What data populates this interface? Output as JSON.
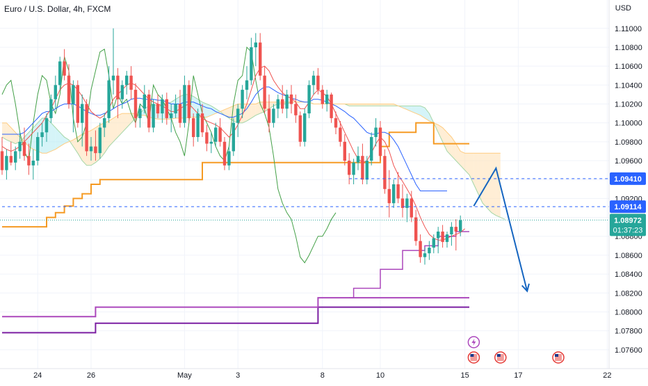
{
  "header": {
    "symbol_title": "Euro / U.S. Dollar, 4h, FXCM",
    "unit": "USD"
  },
  "colors": {
    "up": "#26a69a",
    "down": "#ef5350",
    "kijun_d": "#f59a23",
    "tenkan": "#2962ff",
    "chikou": "#43a047",
    "weekly": "#ab47bc",
    "monthly": "#7b1fa2",
    "cloud_bull": "#b2ebf2",
    "cloud_bear": "#ffe0b2",
    "arrow": "#1565c0",
    "level_line": "#2962ff",
    "price_label": "#26a69a",
    "level_label": "#2962ff"
  },
  "chart_data": {
    "type": "candlestick",
    "title": "Euro / U.S. Dollar, 4h, FXCM",
    "ylabel": "USD",
    "ylim": [
      1.074,
      1.113
    ],
    "y_ticks": [
      "1.11000",
      "1.10800",
      "1.10600",
      "1.10400",
      "1.10200",
      "1.10000",
      "1.09800",
      "1.09600",
      "1.09400",
      "1.09200",
      "1.09000",
      "1.08800",
      "1.08600",
      "1.08400",
      "1.08200",
      "1.08000",
      "1.07800",
      "1.07600"
    ],
    "x_ticks": [
      {
        "label": "24",
        "i": 8
      },
      {
        "label": "26",
        "i": 20
      },
      {
        "label": "May",
        "i": 41
      },
      {
        "label": "3",
        "i": 53
      },
      {
        "label": "8",
        "i": 72
      },
      {
        "label": "10",
        "i": 85
      },
      {
        "label": "15",
        "i": 104
      },
      {
        "label": "17",
        "i": 116
      },
      {
        "label": "22",
        "i": 136
      }
    ],
    "candles": [
      [
        1.097,
        1.0985,
        1.0945,
        1.095
      ],
      [
        1.095,
        1.0972,
        1.094,
        1.0965
      ],
      [
        1.0965,
        1.098,
        1.0955,
        1.0958
      ],
      [
        1.0958,
        1.0975,
        1.095,
        1.097
      ],
      [
        1.097,
        1.099,
        1.0962,
        1.098
      ],
      [
        1.098,
        1.0995,
        1.096,
        1.0965
      ],
      [
        1.0965,
        1.0978,
        1.0945,
        1.0955
      ],
      [
        1.0955,
        1.0972,
        1.094,
        1.096
      ],
      [
        1.096,
        1.099,
        1.0955,
        1.0985
      ],
      [
        1.0985,
        1.1,
        1.0975,
        1.099
      ],
      [
        1.099,
        1.101,
        1.098,
        1.1005
      ],
      [
        1.1005,
        1.103,
        1.1,
        1.1025
      ],
      [
        1.1025,
        1.105,
        1.1015,
        1.104
      ],
      [
        1.104,
        1.107,
        1.1035,
        1.1065
      ],
      [
        1.1065,
        1.1078,
        1.1045,
        1.105
      ],
      [
        1.105,
        1.1062,
        1.1015,
        1.102
      ],
      [
        1.102,
        1.1045,
        1.099,
        1.104
      ],
      [
        1.104,
        1.1045,
        1.0995,
        1.1
      ],
      [
        1.1,
        1.103,
        1.0975,
        1.102
      ],
      [
        1.102,
        1.1025,
        1.0965,
        1.097
      ],
      [
        1.097,
        1.0985,
        1.096,
        1.0975
      ],
      [
        1.0975,
        1.0992,
        1.096,
        1.0968
      ],
      [
        1.0968,
        1.1,
        1.0962,
        1.0995
      ],
      [
        1.0995,
        1.101,
        1.0985,
        1.1005
      ],
      [
        1.1005,
        1.106,
        1.1,
        1.1045
      ],
      [
        1.1045,
        1.11,
        1.103,
        1.105
      ],
      [
        1.105,
        1.1058,
        1.1005,
        1.1025
      ],
      [
        1.1025,
        1.1045,
        1.1015,
        1.104
      ],
      [
        1.104,
        1.1055,
        1.103,
        1.105
      ],
      [
        1.105,
        1.106,
        1.1025,
        1.1035
      ],
      [
        1.1035,
        1.1042,
        1.0995,
        1.1005
      ],
      [
        1.1005,
        1.102,
        1.0995,
        1.1015
      ],
      [
        1.1015,
        1.104,
        1.101,
        1.103
      ],
      [
        1.103,
        1.1035,
        1.099,
        1.0995
      ],
      [
        1.0995,
        1.1025,
        1.099,
        1.102
      ],
      [
        1.102,
        1.103,
        1.1005,
        1.101
      ],
      [
        1.101,
        1.103,
        1.1,
        1.1025
      ],
      [
        1.1025,
        1.1032,
        1.0998,
        1.1005
      ],
      [
        1.1005,
        1.102,
        1.099,
        1.101
      ],
      [
        1.101,
        1.103,
        1.1005,
        1.102
      ],
      [
        1.102,
        1.1035,
        1.0995,
        1.1
      ],
      [
        1.1,
        1.105,
        1.0995,
        1.104
      ],
      [
        1.104,
        1.1045,
        1.1,
        1.1005
      ],
      [
        1.1005,
        1.101,
        1.0975,
        1.0985
      ],
      [
        1.0985,
        1.1015,
        1.098,
        1.101
      ],
      [
        1.101,
        1.102,
        1.0985,
        1.099
      ],
      [
        1.099,
        1.0998,
        1.097,
        1.0978
      ],
      [
        1.0978,
        1.099,
        1.0968,
        1.098
      ],
      [
        1.098,
        1.1,
        1.0975,
        1.0995
      ],
      [
        1.0995,
        1.1005,
        1.0975,
        1.098
      ],
      [
        1.098,
        1.0985,
        1.095,
        1.0955
      ],
      [
        1.0955,
        1.0975,
        1.095,
        1.097
      ],
      [
        1.097,
        1.1005,
        1.0965,
        1.1
      ],
      [
        1.1,
        1.102,
        1.0985,
        1.1015
      ],
      [
        1.1015,
        1.104,
        1.1005,
        1.1035
      ],
      [
        1.1035,
        1.106,
        1.1025,
        1.1045
      ],
      [
        1.1045,
        1.109,
        1.104,
        1.108
      ],
      [
        1.108,
        1.1095,
        1.106,
        1.1085
      ],
      [
        1.1085,
        1.1095,
        1.1045,
        1.105
      ],
      [
        1.105,
        1.106,
        1.101,
        1.1015
      ],
      [
        1.1015,
        1.103,
        1.099,
        1.1
      ],
      [
        1.1,
        1.102,
        1.0995,
        1.1015
      ],
      [
        1.1015,
        1.103,
        1.1005,
        1.1025
      ],
      [
        1.1025,
        1.104,
        1.101,
        1.1015
      ],
      [
        1.1015,
        1.1035,
        1.1005,
        1.103
      ],
      [
        1.103,
        1.104,
        1.101,
        1.102
      ],
      [
        1.102,
        1.103,
        1.1,
        1.1008
      ],
      [
        1.1008,
        1.1012,
        1.0975,
        1.098
      ],
      [
        1.098,
        1.1015,
        1.0975,
        1.101
      ],
      [
        1.101,
        1.1045,
        1.1005,
        1.104
      ],
      [
        1.104,
        1.1055,
        1.103,
        1.105
      ],
      [
        1.105,
        1.1058,
        1.103,
        1.1035
      ],
      [
        1.1035,
        1.104,
        1.1015,
        1.102
      ],
      [
        1.102,
        1.1035,
        1.1012,
        1.103
      ],
      [
        1.103,
        1.1032,
        1.1,
        1.1005
      ],
      [
        1.1005,
        1.1012,
        1.0988,
        1.0995
      ],
      [
        1.0995,
        1.1002,
        1.0975,
        1.098
      ],
      [
        1.098,
        1.0988,
        1.0955,
        1.096
      ],
      [
        1.096,
        1.0968,
        1.0935,
        1.0945
      ],
      [
        1.0945,
        1.0962,
        1.0935,
        1.0958
      ],
      [
        1.0958,
        1.0975,
        1.095,
        1.0965
      ],
      [
        1.0965,
        1.0978,
        1.0935,
        1.094
      ],
      [
        1.094,
        1.0965,
        1.0935,
        1.096
      ],
      [
        1.096,
        1.099,
        1.0955,
        1.0985
      ],
      [
        1.0985,
        1.1005,
        1.0975,
        1.0995
      ],
      [
        1.0995,
        1.1002,
        1.096,
        1.0965
      ],
      [
        1.0965,
        1.0972,
        1.0925,
        1.093
      ],
      [
        1.093,
        1.095,
        1.09,
        1.0915
      ],
      [
        1.0915,
        1.094,
        1.091,
        1.0935
      ],
      [
        1.0935,
        1.0948,
        1.0915,
        1.092
      ],
      [
        1.092,
        1.0935,
        1.09,
        1.091
      ],
      [
        1.091,
        1.0925,
        1.0895,
        1.092
      ],
      [
        1.092,
        1.0928,
        1.0895,
        1.09
      ],
      [
        1.09,
        1.0908,
        1.087,
        1.0875
      ],
      [
        1.0875,
        1.0882,
        1.0852,
        1.0858
      ],
      [
        1.0858,
        1.0868,
        1.085,
        1.0862
      ],
      [
        1.0862,
        1.0875,
        1.0855,
        1.0868
      ],
      [
        1.0868,
        1.0882,
        1.0862,
        1.0878
      ],
      [
        1.0878,
        1.089,
        1.0862,
        1.0885
      ],
      [
        1.0885,
        1.0892,
        1.0868,
        1.0874
      ],
      [
        1.0874,
        1.0885,
        1.0868,
        1.0882
      ],
      [
        1.0882,
        1.0895,
        1.087,
        1.089
      ],
      [
        1.089,
        1.0898,
        1.0865,
        1.0885
      ],
      [
        1.0885,
        1.0902,
        1.088,
        1.0897
      ]
    ],
    "tenkan_x_start": 0,
    "tenkan": [
      1.0975,
      1.0972,
      1.097,
      1.0972,
      1.0975,
      1.098,
      1.0985,
      1.099,
      1.0995,
      1.1,
      1.1008,
      1.1015,
      1.1025,
      1.1035,
      1.104,
      1.1042,
      1.104,
      1.1035,
      1.1028,
      1.102,
      1.1012,
      1.1008,
      1.1005,
      1.1008,
      1.1015,
      1.1025,
      1.103,
      1.1035,
      1.104,
      1.1042,
      1.104,
      1.1035,
      1.103,
      1.1025,
      1.1022,
      1.102,
      1.1018,
      1.1015,
      1.1012,
      1.1012,
      1.1015,
      1.1018,
      1.102,
      1.1015,
      1.101,
      1.1005,
      1.1002,
      1.1,
      1.0998,
      1.0995,
      1.099,
      1.0985,
      1.099,
      1.0998,
      1.1008,
      1.102,
      1.1035,
      1.105,
      1.1058,
      1.106,
      1.1055,
      1.1045,
      1.1038,
      1.1032,
      1.1028,
      1.1026,
      1.1022,
      1.1015,
      1.1015,
      1.1022,
      1.103,
      1.1035,
      1.1032,
      1.1028,
      1.102,
      1.101,
      1.1,
      1.099,
      1.098,
      1.097,
      1.0962,
      1.0958,
      1.096,
      1.0968,
      1.0978,
      1.0985,
      1.098,
      1.097,
      1.0955,
      1.0945,
      1.0938,
      1.093,
      1.0922,
      1.0912,
      1.09,
      1.089,
      1.0882,
      1.0878,
      1.0876,
      1.0876,
      1.0878,
      1.088,
      1.0882,
      1.0884,
      1.0888
    ],
    "kijun_x_start": 0,
    "kijun": [
      1.0988,
      1.0988,
      1.0988,
      1.0988,
      1.0988,
      1.099,
      1.0995,
      1.1,
      1.1005,
      1.101,
      1.1012,
      1.1012,
      1.1015,
      1.1018,
      1.102,
      1.102,
      1.102,
      1.1018,
      1.1015,
      1.1012,
      1.101,
      1.1008,
      1.1008,
      1.101,
      1.1012,
      1.1015,
      1.1018,
      1.102,
      1.1022,
      1.1025,
      1.1026,
      1.1026,
      1.1025,
      1.1025,
      1.1025,
      1.1024,
      1.1024,
      1.1022,
      1.102,
      1.102,
      1.102,
      1.1022,
      1.1022,
      1.1022,
      1.102,
      1.1018,
      1.1016,
      1.1015,
      1.1012,
      1.101,
      1.1008,
      1.1006,
      1.1006,
      1.1008,
      1.101,
      1.1015,
      1.1022,
      1.103,
      1.1035,
      1.1038,
      1.1038,
      1.1035,
      1.1032,
      1.103,
      1.1028,
      1.1026,
      1.1025,
      1.1023,
      1.1022,
      1.1022,
      1.1025,
      1.1025,
      1.1024,
      1.1022,
      1.102,
      1.1018,
      1.1015,
      1.1012,
      1.1008,
      1.1005,
      1.1,
      1.0995,
      1.099,
      1.0988,
      1.0988,
      1.099,
      1.099,
      1.0988,
      1.0982,
      1.0975,
      1.0965,
      1.0955,
      1.0945,
      1.0935,
      1.0928,
      1.0928,
      1.0928,
      1.0928,
      1.0928,
      1.0928,
      1.0928
    ],
    "chikou_x_start": 0,
    "chikou": [
      1.103,
      1.104,
      1.1045,
      1.102,
      1.099,
      1.097,
      1.096,
      1.1,
      1.103,
      1.105,
      1.1045,
      1.102,
      1.101,
      1.103,
      1.107,
      1.1055,
      1.1005,
      1.098,
      1.0985,
      1.1,
      1.1035,
      1.1055,
      1.1075,
      1.1078,
      1.105,
      1.1015,
      1.103,
      1.102,
      1.1025,
      1.101,
      1.1,
      1.102,
      1.1015,
      1.1,
      1.104,
      1.103,
      1.1025,
      1.1015,
      1.1005,
      1.099,
      1.098,
      1.0965,
      1.1,
      1.105,
      1.103,
      1.101,
      1.1,
      1.099,
      1.0975,
      1.0965,
      1.096,
      1.0975,
      1.102,
      1.1045,
      1.105,
      1.108,
      1.1075,
      1.1045,
      1.102,
      1.101,
      1.0995,
      1.0965,
      1.093,
      1.0915,
      1.0905,
      1.0898,
      1.088,
      1.0858,
      1.0852,
      1.086,
      1.087,
      1.088,
      1.088,
      1.0888,
      1.0898,
      1.0905
    ],
    "cloud_a_x_start": 0,
    "cloud_a": [
      1.0985,
      1.0982,
      1.098,
      1.0978,
      1.098,
      1.0985,
      1.099,
      1.0995,
      1.1,
      1.1005,
      1.1005,
      1.1,
      1.0995,
      1.099,
      1.0985,
      1.0982,
      1.0975,
      1.0968,
      1.096,
      1.0955,
      1.0955,
      1.0958,
      1.0962,
      1.0968,
      1.0975,
      1.098,
      1.0985,
      1.099,
      1.0995,
      1.1,
      1.1005,
      1.101,
      1.1015,
      1.1018,
      1.102,
      1.1018,
      1.1018,
      1.102,
      1.1022,
      1.1025,
      1.1028,
      1.103,
      1.103,
      1.1028,
      1.1025,
      1.1022,
      1.102,
      1.1018,
      1.1015,
      1.1012,
      1.1008,
      1.1005,
      1.1002,
      1.1,
      1.1,
      1.1002,
      1.1005,
      1.1008,
      1.101,
      1.1012,
      1.1015,
      1.1018,
      1.102,
      1.102,
      1.102,
      1.1022,
      1.1022,
      1.1022,
      1.1022,
      1.1022,
      1.102,
      1.102,
      1.102,
      1.102,
      1.102,
      1.102,
      1.102,
      1.102,
      1.1018,
      1.1018,
      1.1018,
      1.1018,
      1.1018,
      1.1018,
      1.1018,
      1.1018,
      1.1018,
      1.1018,
      1.1018,
      1.1018,
      1.1018,
      1.1018,
      1.1018,
      1.1018,
      1.1018,
      1.1016,
      1.101,
      1.1,
      1.099,
      1.098,
      1.097,
      1.0965,
      1.096,
      1.0955,
      1.095,
      1.0945,
      1.0935,
      1.0925,
      1.0915,
      1.091,
      1.0905,
      1.0902,
      1.09,
      1.0898
    ],
    "cloud_b_x_start": 0,
    "cloud_b": [
      1.1,
      1.1,
      1.0995,
      1.099,
      1.0985,
      1.098,
      1.0975,
      1.0972,
      1.097,
      1.0968,
      1.0968,
      1.097,
      1.0972,
      1.0975,
      1.0978,
      1.098,
      1.0982,
      1.0985,
      1.0988,
      1.099,
      1.0992,
      1.0995,
      1.0998,
      1.1,
      1.1002,
      1.1005,
      1.1008,
      1.101,
      1.101,
      1.101,
      1.101,
      1.1008,
      1.1008,
      1.1006,
      1.1005,
      1.1004,
      1.1004,
      1.1004,
      1.1004,
      1.1005,
      1.1005,
      1.1005,
      1.1006,
      1.1006,
      1.1006,
      1.1006,
      1.1006,
      1.1008,
      1.101,
      1.1012,
      1.1014,
      1.1016,
      1.1018,
      1.102,
      1.102,
      1.102,
      1.102,
      1.102,
      1.1022,
      1.1022,
      1.1022,
      1.1022,
      1.1022,
      1.1022,
      1.1022,
      1.1022,
      1.1022,
      1.1022,
      1.1022,
      1.1022,
      1.102,
      1.102,
      1.102,
      1.102,
      1.102,
      1.102,
      1.102,
      1.102,
      1.102,
      1.102,
      1.102,
      1.102,
      1.102,
      1.102,
      1.102,
      1.102,
      1.102,
      1.102,
      1.102,
      1.1018,
      1.1016,
      1.1014,
      1.1012,
      1.101,
      1.1008,
      1.1005,
      1.1002,
      1.1,
      1.0998,
      1.0995,
      1.099,
      1.0985,
      1.0978,
      1.097,
      1.0968,
      1.0968,
      1.0968,
      1.0968,
      1.0968,
      1.0968,
      1.0968,
      1.0968,
      1.0968
    ],
    "daily_kijun_steps": [
      [
        0,
        1.089
      ],
      [
        9,
        1.089
      ],
      [
        10,
        1.09
      ],
      [
        12,
        1.0905
      ],
      [
        14,
        1.0912
      ],
      [
        16,
        1.092
      ],
      [
        18,
        1.0925
      ],
      [
        20,
        1.0935
      ],
      [
        22,
        1.094
      ],
      [
        44,
        1.094
      ],
      [
        45,
        1.0958
      ],
      [
        84,
        1.0958
      ],
      [
        85,
        1.0975
      ],
      [
        87,
        1.099
      ],
      [
        93,
        1.1
      ],
      [
        97,
        1.0978
      ],
      [
        105,
        1.0978
      ]
    ],
    "weekly_line_steps": [
      [
        0,
        1.0795
      ],
      [
        20,
        1.0795
      ],
      [
        21,
        1.0805
      ],
      [
        70,
        1.0805
      ],
      [
        71,
        1.0815
      ],
      [
        105,
        1.0815
      ]
    ],
    "weekly2_steps": [
      [
        78,
        1.0815
      ],
      [
        79,
        1.0825
      ],
      [
        84,
        1.0825
      ],
      [
        85,
        1.0845
      ],
      [
        90,
        1.0865
      ],
      [
        95,
        1.087
      ],
      [
        98,
        1.088
      ],
      [
        102,
        1.0885
      ],
      [
        105,
        1.0885
      ]
    ],
    "monthly_line_steps": [
      [
        0,
        1.0778
      ],
      [
        20,
        1.0778
      ],
      [
        21,
        1.0788
      ],
      [
        70,
        1.0788
      ],
      [
        71,
        1.0805
      ],
      [
        105,
        1.0805
      ]
    ],
    "levels": [
      {
        "price": 1.0941,
        "label": "1.09410",
        "x_from_i": 78
      },
      {
        "price": 1.09114,
        "label": "1.09114",
        "x_from_i": 0
      }
    ],
    "last_price": {
      "label": "1.08972",
      "timer": "01:37:23",
      "price": 1.08972
    },
    "projection": [
      [
        106,
        1.0912
      ],
      [
        111,
        1.0952
      ],
      [
        118,
        1.0822
      ]
    ],
    "events": [
      {
        "i": 106,
        "type": "lightning"
      },
      {
        "i": 106,
        "type": "us-flag"
      },
      {
        "i": 112,
        "type": "us-flag"
      },
      {
        "i": 125,
        "type": "us-flag"
      }
    ]
  }
}
